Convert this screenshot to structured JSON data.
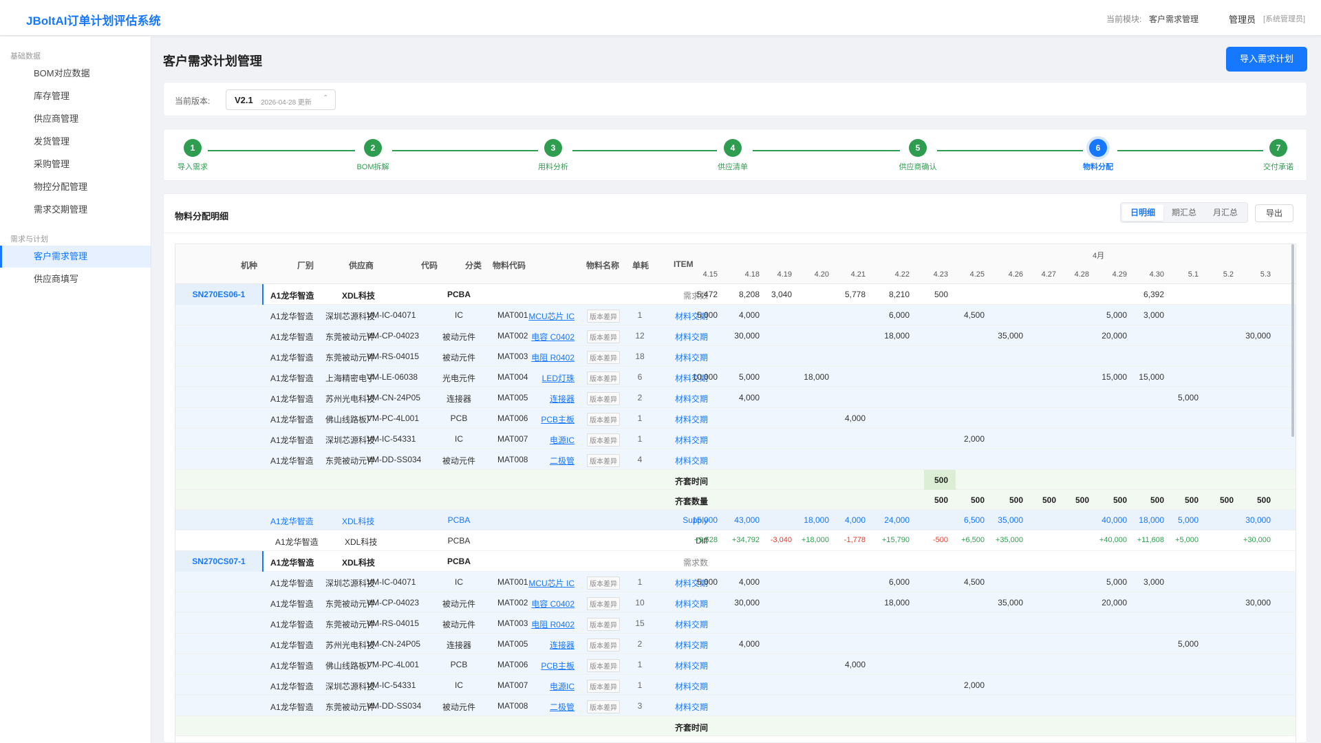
{
  "app": {
    "title": "JBoltAI订单计划评估系统"
  },
  "header": {
    "module_label": "当前模块:",
    "module_name": "客户需求管理",
    "user": "管理员",
    "role": "[系统管理员]"
  },
  "sidebar": {
    "groups": [
      {
        "label": "基础数据",
        "items": [
          "BOM对应数据",
          "库存管理",
          "供应商管理",
          "发货管理",
          "采购管理",
          "物控分配管理",
          "需求交期管理"
        ]
      },
      {
        "label": "需求与计划",
        "items": [
          "客户需求管理",
          "供应商填写"
        ]
      }
    ],
    "active": "客户需求管理"
  },
  "page": {
    "title": "客户需求计划管理",
    "import_button": "导入需求计划"
  },
  "version": {
    "label": "当前版本:",
    "value": "V2.1",
    "date": "2026-04-28 更新"
  },
  "steps": [
    {
      "num": "1",
      "label": "导入需求"
    },
    {
      "num": "2",
      "label": "BOM拆解"
    },
    {
      "num": "3",
      "label": "用料分析"
    },
    {
      "num": "4",
      "label": "供应清单"
    },
    {
      "num": "5",
      "label": "供应商确认"
    },
    {
      "num": "6",
      "label": "物料分配",
      "current": true
    },
    {
      "num": "7",
      "label": "交付承诺"
    }
  ],
  "detail": {
    "title": "物料分配明细",
    "tabs": [
      "日明细",
      "期汇总",
      "月汇总"
    ],
    "active_tab": "日明细",
    "export": "导出"
  },
  "table": {
    "columns": {
      "model": "机种",
      "factory": "厂别",
      "supplier": "供应商",
      "code": "代码",
      "category": "分类",
      "mat_code": "物料代码",
      "mat_name": "物料名称",
      "unit": "单耗",
      "item": "ITEM"
    },
    "month": "4月",
    "dates": [
      "4.15",
      "4.18",
      "4.19",
      "4.20",
      "4.21",
      "4.22",
      "4.23",
      "4.25",
      "4.26",
      "4.27",
      "4.28",
      "4.29",
      "4.30",
      "5.1",
      "5.2",
      "5.3"
    ],
    "diff_badge": "版本差异",
    "groups": [
      {
        "sn": "SN270ES06-1",
        "header": {
          "factory": "A1龙华智造",
          "supplier": "XDL科技",
          "category": "PCBA",
          "item": "需求数",
          "values": [
            "5,472",
            "8,208",
            "3,040",
            "",
            "5,778",
            "8,210",
            "500",
            "",
            "",
            "",
            "",
            "",
            "6,392",
            "",
            "",
            ""
          ]
        },
        "items": [
          {
            "factory": "A1龙华智造",
            "supplier": "深圳芯源科技",
            "code": "VM-IC-04071",
            "category": "IC",
            "mat": "MAT001",
            "name": "MCU芯片 IC",
            "unit": "1",
            "item": "材料交期",
            "values": [
              "5,000",
              "4,000",
              "",
              "",
              "",
              "6,000",
              "",
              "4,500",
              "",
              "",
              "",
              "5,000",
              "3,000",
              "",
              "",
              ""
            ]
          },
          {
            "factory": "A1龙华智造",
            "supplier": "东莞被动元件",
            "code": "VM-CP-04023",
            "category": "被动元件",
            "mat": "MAT002",
            "name": "电容 C0402",
            "unit": "12",
            "item": "材料交期",
            "values": [
              "",
              "30,000",
              "",
              "",
              "",
              "18,000",
              "",
              "",
              "35,000",
              "",
              "",
              "20,000",
              "",
              "",
              "",
              "30,000"
            ]
          },
          {
            "factory": "A1龙华智造",
            "supplier": "东莞被动元件",
            "code": "VM-RS-04015",
            "category": "被动元件",
            "mat": "MAT003",
            "name": "电阻 R0402",
            "unit": "18",
            "item": "材料交期",
            "values": [
              "",
              "",
              "",
              "",
              "",
              "",
              "",
              "",
              "",
              "",
              "",
              "",
              "",
              "",
              "",
              ""
            ]
          },
          {
            "factory": "A1龙华智造",
            "supplier": "上海精密电子",
            "code": "VM-LE-06038",
            "category": "光电元件",
            "mat": "MAT004",
            "name": "LED灯珠",
            "unit": "6",
            "item": "材料交期",
            "values": [
              "10,000",
              "5,000",
              "",
              "18,000",
              "",
              "",
              "",
              "",
              "",
              "",
              "",
              "15,000",
              "15,000",
              "",
              "",
              ""
            ]
          },
          {
            "factory": "A1龙华智造",
            "supplier": "苏州光电科技",
            "code": "VM-CN-24P05",
            "category": "连接器",
            "mat": "MAT005",
            "name": "连接器",
            "unit": "2",
            "item": "材料交期",
            "values": [
              "",
              "4,000",
              "",
              "",
              "",
              "",
              "",
              "",
              "",
              "",
              "",
              "",
              "",
              "5,000",
              "",
              ""
            ]
          },
          {
            "factory": "A1龙华智造",
            "supplier": "佛山线路板厂",
            "code": "VM-PC-4L001",
            "category": "PCB",
            "mat": "MAT006",
            "name": "PCB主板",
            "unit": "1",
            "item": "材料交期",
            "values": [
              "",
              "",
              "",
              "",
              "4,000",
              "",
              "",
              "",
              "",
              "",
              "",
              "",
              "",
              "",
              "",
              ""
            ]
          },
          {
            "factory": "A1龙华智造",
            "supplier": "深圳芯源科技",
            "code": "VM-IC-54331",
            "category": "IC",
            "mat": "MAT007",
            "name": "电源IC",
            "unit": "1",
            "item": "材料交期",
            "values": [
              "",
              "",
              "",
              "",
              "",
              "",
              "",
              "2,000",
              "",
              "",
              "",
              "",
              "",
              "",
              "",
              ""
            ]
          },
          {
            "factory": "A1龙华智造",
            "supplier": "东莞被动元件",
            "code": "VM-DD-SS034",
            "category": "被动元件",
            "mat": "MAT008",
            "name": "二极管",
            "unit": "4",
            "item": "材料交期",
            "values": [
              "",
              "",
              "",
              "",
              "",
              "",
              "",
              "",
              "",
              "",
              "",
              "",
              "",
              "",
              "",
              ""
            ]
          }
        ],
        "qitao_time": {
          "item": "齐套时间",
          "values": [
            "",
            "",
            "",
            "",
            "",
            "",
            "500",
            "",
            "",
            "",
            "",
            "",
            "",
            "",
            "",
            ""
          ]
        },
        "qitao_qty": {
          "item": "齐套数量",
          "values": [
            "",
            "",
            "",
            "",
            "",
            "",
            "500",
            "500",
            "500",
            "500",
            "500",
            "500",
            "500",
            "500",
            "500",
            "500"
          ]
        },
        "supply": {
          "factory": "A1龙华智造",
          "supplier": "XDL科技",
          "category": "PCBA",
          "item": "Supply",
          "values": [
            "15,000",
            "43,000",
            "",
            "18,000",
            "4,000",
            "24,000",
            "",
            "6,500",
            "35,000",
            "",
            "",
            "40,000",
            "18,000",
            "5,000",
            "",
            "30,000"
          ]
        },
        "diff": {
          "factory": "A1龙华智造",
          "supplier": "XDL科技",
          "category": "PCBA",
          "item": "Diff",
          "values": [
            "+9,528",
            "+34,792",
            "-3,040",
            "+18,000",
            "-1,778",
            "+15,790",
            "-500",
            "+6,500",
            "+35,000",
            "",
            "",
            "+40,000",
            "+11,608",
            "+5,000",
            "",
            "+30,000"
          ]
        }
      },
      {
        "sn": "SN270CS07-1",
        "header": {
          "factory": "A1龙华智造",
          "supplier": "XDL科技",
          "category": "PCBA",
          "item": "需求数",
          "values": [
            "",
            "",
            "",
            "",
            "",
            "",
            "",
            "",
            "",
            "",
            "",
            "",
            "",
            "",
            "",
            ""
          ]
        },
        "items": [
          {
            "factory": "A1龙华智造",
            "supplier": "深圳芯源科技",
            "code": "VM-IC-04071",
            "category": "IC",
            "mat": "MAT001",
            "name": "MCU芯片 IC",
            "unit": "1",
            "item": "材料交期",
            "values": [
              "5,000",
              "4,000",
              "",
              "",
              "",
              "6,000",
              "",
              "4,500",
              "",
              "",
              "",
              "5,000",
              "3,000",
              "",
              "",
              ""
            ]
          },
          {
            "factory": "A1龙华智造",
            "supplier": "东莞被动元件",
            "code": "VM-CP-04023",
            "category": "被动元件",
            "mat": "MAT002",
            "name": "电容 C0402",
            "unit": "10",
            "item": "材料交期",
            "values": [
              "",
              "30,000",
              "",
              "",
              "",
              "18,000",
              "",
              "",
              "35,000",
              "",
              "",
              "20,000",
              "",
              "",
              "",
              "30,000"
            ]
          },
          {
            "factory": "A1龙华智造",
            "supplier": "东莞被动元件",
            "code": "VM-RS-04015",
            "category": "被动元件",
            "mat": "MAT003",
            "name": "电阻 R0402",
            "unit": "15",
            "item": "材料交期",
            "values": [
              "",
              "",
              "",
              "",
              "",
              "",
              "",
              "",
              "",
              "",
              "",
              "",
              "",
              "",
              "",
              ""
            ]
          },
          {
            "factory": "A1龙华智造",
            "supplier": "苏州光电科技",
            "code": "VM-CN-24P05",
            "category": "连接器",
            "mat": "MAT005",
            "name": "连接器",
            "unit": "2",
            "item": "材料交期",
            "values": [
              "",
              "4,000",
              "",
              "",
              "",
              "",
              "",
              "",
              "",
              "",
              "",
              "",
              "",
              "5,000",
              "",
              ""
            ]
          },
          {
            "factory": "A1龙华智造",
            "supplier": "佛山线路板厂",
            "code": "VM-PC-4L001",
            "category": "PCB",
            "mat": "MAT006",
            "name": "PCB主板",
            "unit": "1",
            "item": "材料交期",
            "values": [
              "",
              "",
              "",
              "",
              "4,000",
              "",
              "",
              "",
              "",
              "",
              "",
              "",
              "",
              "",
              "",
              ""
            ]
          },
          {
            "factory": "A1龙华智造",
            "supplier": "深圳芯源科技",
            "code": "VM-IC-54331",
            "category": "IC",
            "mat": "MAT007",
            "name": "电源IC",
            "unit": "1",
            "item": "材料交期",
            "values": [
              "",
              "",
              "",
              "",
              "",
              "",
              "",
              "2,000",
              "",
              "",
              "",
              "",
              "",
              "",
              "",
              ""
            ]
          },
          {
            "factory": "A1龙华智造",
            "supplier": "东莞被动元件",
            "code": "VM-DD-SS034",
            "category": "被动元件",
            "mat": "MAT008",
            "name": "二极管",
            "unit": "3",
            "item": "材料交期",
            "values": [
              "",
              "",
              "",
              "",
              "",
              "",
              "",
              "",
              "",
              "",
              "",
              "",
              "",
              "",
              "",
              ""
            ]
          }
        ],
        "qitao_time": {
          "item": "齐套时间",
          "values": [
            "",
            "",
            "",
            "",
            "",
            "",
            "",
            "",
            "",
            "",
            "",
            "",
            "",
            "",
            "",
            ""
          ]
        }
      }
    ]
  },
  "colors": {
    "accent": "#1677ff",
    "success": "#2e9d4f",
    "danger": "#e03c31"
  }
}
